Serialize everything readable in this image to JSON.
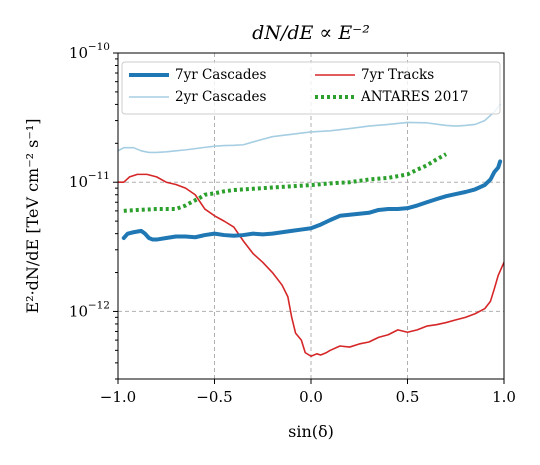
{
  "chart_data": {
    "type": "line",
    "title": "dN/dE ∝ E⁻²",
    "xlabel": "sin(δ)",
    "ylabel": "E²·dN/dE  [TeV cm⁻² s⁻¹]",
    "xlim": [
      -1.0,
      1.0
    ],
    "ylim": [
      3e-13,
      1e-10
    ],
    "y_scale": "log",
    "grid": true,
    "legend_position": "top",
    "x_ticks": [
      -1.0,
      -0.5,
      0.0,
      0.5,
      1.0
    ],
    "x_tick_labels": [
      "−1.0",
      "−0.5",
      "0.0",
      "0.5",
      "1.0"
    ],
    "y_ticks": [
      1e-12,
      1e-11,
      1e-10
    ],
    "y_tick_labels": [
      {
        "base": "10",
        "exp": "−12"
      },
      {
        "base": "10",
        "exp": "−11"
      },
      {
        "base": "10",
        "exp": "−10"
      }
    ],
    "series": [
      {
        "name": "7yr Cascades",
        "color": "#1f77b4",
        "style": "solid-thick",
        "x": [
          -0.97,
          -0.95,
          -0.92,
          -0.88,
          -0.86,
          -0.84,
          -0.82,
          -0.8,
          -0.75,
          -0.7,
          -0.65,
          -0.6,
          -0.55,
          -0.5,
          -0.45,
          -0.4,
          -0.35,
          -0.3,
          -0.25,
          -0.2,
          -0.15,
          -0.1,
          -0.05,
          0.0,
          0.05,
          0.1,
          0.15,
          0.2,
          0.25,
          0.3,
          0.35,
          0.4,
          0.45,
          0.5,
          0.55,
          0.6,
          0.65,
          0.7,
          0.75,
          0.8,
          0.85,
          0.9,
          0.93,
          0.95,
          0.97,
          0.98
        ],
        "y": [
          3.7e-12,
          4e-12,
          4.1e-12,
          4.2e-12,
          4e-12,
          3.7e-12,
          3.6e-12,
          3.6e-12,
          3.7e-12,
          3.8e-12,
          3.8e-12,
          3.75e-12,
          3.9e-12,
          4e-12,
          3.9e-12,
          3.85e-12,
          3.9e-12,
          4e-12,
          3.95e-12,
          4e-12,
          4.1e-12,
          4.2e-12,
          4.3e-12,
          4.4e-12,
          4.7e-12,
          5.1e-12,
          5.5e-12,
          5.6e-12,
          5.7e-12,
          5.8e-12,
          6.1e-12,
          6.2e-12,
          6.2e-12,
          6.3e-12,
          6.6e-12,
          7e-12,
          7.4e-12,
          7.8e-12,
          8.1e-12,
          8.4e-12,
          8.8e-12,
          9.5e-12,
          1.05e-11,
          1.2e-11,
          1.3e-11,
          1.45e-11
        ]
      },
      {
        "name": "2yr Cascades",
        "color": "#a6cee3",
        "style": "solid",
        "x": [
          -1.0,
          -0.97,
          -0.92,
          -0.88,
          -0.84,
          -0.8,
          -0.75,
          -0.7,
          -0.65,
          -0.6,
          -0.55,
          -0.5,
          -0.45,
          -0.4,
          -0.35,
          -0.3,
          -0.25,
          -0.2,
          -0.15,
          -0.1,
          -0.05,
          0.0,
          0.1,
          0.2,
          0.3,
          0.4,
          0.5,
          0.6,
          0.7,
          0.75,
          0.8,
          0.85,
          0.9,
          0.95,
          0.98
        ],
        "y": [
          1.75e-11,
          1.85e-11,
          1.85e-11,
          1.75e-11,
          1.7e-11,
          1.7e-11,
          1.72e-11,
          1.75e-11,
          1.78e-11,
          1.82e-11,
          1.86e-11,
          1.9e-11,
          1.92e-11,
          1.93e-11,
          1.95e-11,
          2.05e-11,
          2.15e-11,
          2.25e-11,
          2.3e-11,
          2.35e-11,
          2.4e-11,
          2.45e-11,
          2.5e-11,
          2.6e-11,
          2.72e-11,
          2.8e-11,
          2.9e-11,
          2.88e-11,
          2.75e-11,
          2.72e-11,
          2.75e-11,
          2.8e-11,
          3e-11,
          3.5e-11,
          4e-11
        ]
      },
      {
        "name": "7yr Tracks",
        "color": "#d62728",
        "style": "solid",
        "x": [
          -1.0,
          -0.97,
          -0.94,
          -0.9,
          -0.85,
          -0.8,
          -0.75,
          -0.7,
          -0.65,
          -0.6,
          -0.55,
          -0.5,
          -0.45,
          -0.4,
          -0.35,
          -0.3,
          -0.25,
          -0.2,
          -0.15,
          -0.12,
          -0.1,
          -0.08,
          -0.05,
          -0.03,
          0.0,
          0.03,
          0.05,
          0.08,
          0.1,
          0.15,
          0.2,
          0.25,
          0.3,
          0.35,
          0.4,
          0.45,
          0.5,
          0.55,
          0.6,
          0.65,
          0.7,
          0.75,
          0.8,
          0.85,
          0.9,
          0.93,
          0.95,
          0.97,
          1.0
        ],
        "y": [
          1e-11,
          1e-11,
          1.1e-11,
          1.15e-11,
          1.15e-11,
          1.1e-11,
          1e-11,
          9.6e-12,
          9e-12,
          8e-12,
          6.2e-12,
          5.5e-12,
          5e-12,
          4.5e-12,
          3.5e-12,
          2.8e-12,
          2.4e-12,
          2e-12,
          1.6e-12,
          1.3e-12,
          9e-13,
          6.8e-13,
          6e-13,
          4.8e-13,
          4.5e-13,
          4.7e-13,
          4.6e-13,
          4.8e-13,
          5e-13,
          5.4e-13,
          5.3e-13,
          5.6e-13,
          5.8e-13,
          6.3e-13,
          6.6e-13,
          7.2e-13,
          6.9e-13,
          7.2e-13,
          7.7e-13,
          7.9e-13,
          8.2e-13,
          8.6e-13,
          9e-13,
          9.6e-13,
          1.05e-12,
          1.2e-12,
          1.5e-12,
          1.9e-12,
          2.4e-12
        ]
      },
      {
        "name": "ANTARES 2017",
        "color": "#2ca02c",
        "style": "dotted-thick",
        "x": [
          -0.97,
          -0.9,
          -0.8,
          -0.7,
          -0.65,
          -0.62,
          -0.58,
          -0.55,
          -0.5,
          -0.45,
          -0.4,
          -0.3,
          -0.2,
          -0.1,
          0.0,
          0.1,
          0.2,
          0.3,
          0.4,
          0.5,
          0.55,
          0.6,
          0.65,
          0.7
        ],
        "y": [
          6e-12,
          6.1e-12,
          6.2e-12,
          6.2e-12,
          6.6e-12,
          7e-12,
          7.5e-12,
          8e-12,
          8.2e-12,
          8.5e-12,
          8.7e-12,
          8.9e-12,
          9.1e-12,
          9.3e-12,
          9.5e-12,
          9.8e-12,
          1e-11,
          1.05e-11,
          1.08e-11,
          1.15e-11,
          1.25e-11,
          1.35e-11,
          1.5e-11,
          1.65e-11
        ]
      }
    ]
  }
}
